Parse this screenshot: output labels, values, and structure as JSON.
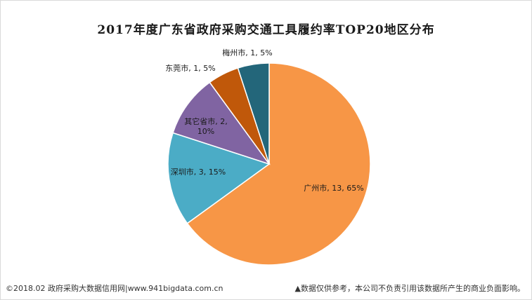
{
  "chart_data": {
    "type": "pie",
    "title": "2017年度广东省政府采购交通工具履约率TOP20地区分布",
    "slices": [
      {
        "label": "广州市, 13, 65%",
        "name": "广州市",
        "value": 13,
        "percent": 65,
        "color": "#F79646"
      },
      {
        "label": "深圳市, 3, 15%",
        "name": "深圳市",
        "value": 3,
        "percent": 15,
        "color": "#4BACC6"
      },
      {
        "label_lines": [
          "其它省市, 2,",
          "10%"
        ],
        "name": "其它省市",
        "value": 2,
        "percent": 10,
        "color": "#8064A2"
      },
      {
        "label": "东莞市, 1, 5%",
        "name": "东莞市",
        "value": 1,
        "percent": 5,
        "color": "#C0580A"
      },
      {
        "label": "梅州市, 1, 5%",
        "name": "梅州市",
        "value": 1,
        "percent": 5,
        "color": "#23667A"
      }
    ]
  },
  "footer": {
    "left": "©2018.02 政府采购大数据信用网|www.941bigdata.com.cn",
    "right": "▲数据仅供参考，本公司不负责引用该数据所产生的商业负面影响。"
  }
}
